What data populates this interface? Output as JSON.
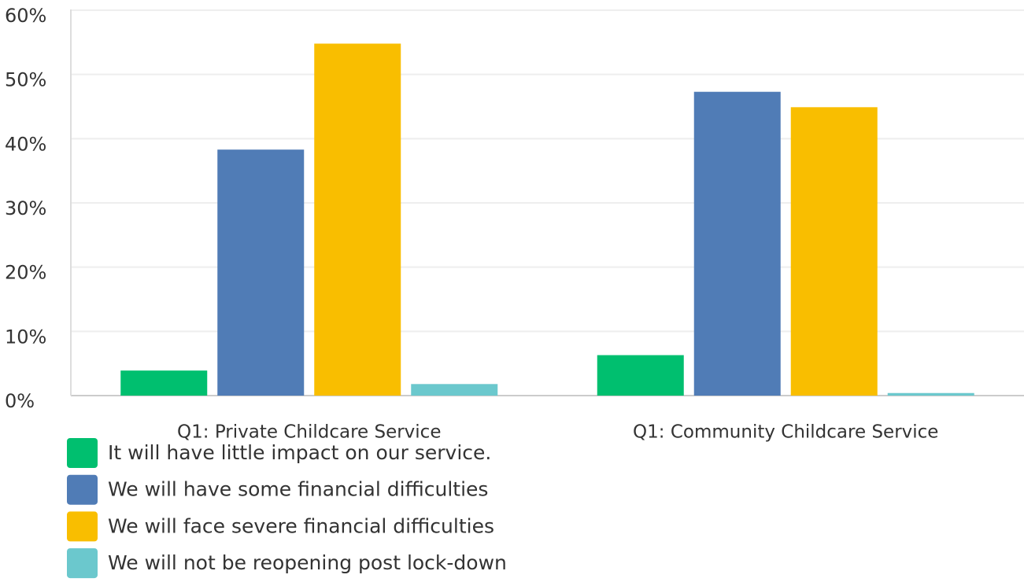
{
  "chart_data": {
    "type": "bar",
    "categories": [
      "Q1: Private Childcare Service",
      "Q1: Community Childcare Service"
    ],
    "series": [
      {
        "name": "It will have little impact on our service.",
        "color": "#00bf6f",
        "values": [
          3.9,
          6.3
        ]
      },
      {
        "name": "We will have some financial difficulties",
        "color": "#507cb6",
        "values": [
          38.3,
          47.3
        ]
      },
      {
        "name": "We will face severe financial difficulties",
        "color": "#f9be00",
        "values": [
          54.8,
          44.9
        ]
      },
      {
        "name": "We will not be reopening post lock-down",
        "color": "#6bc8cd",
        "values": [
          1.8,
          0.4
        ]
      }
    ],
    "ylim": [
      0,
      60
    ],
    "yticks": [
      {
        "value": 0,
        "label": "0%"
      },
      {
        "value": 10,
        "label": "10%"
      },
      {
        "value": 20,
        "label": "20%"
      },
      {
        "value": 30,
        "label": "30%"
      },
      {
        "value": 40,
        "label": "40%"
      },
      {
        "value": 50,
        "label": "50%"
      },
      {
        "value": 60,
        "label": "60%"
      }
    ],
    "grid": true
  }
}
